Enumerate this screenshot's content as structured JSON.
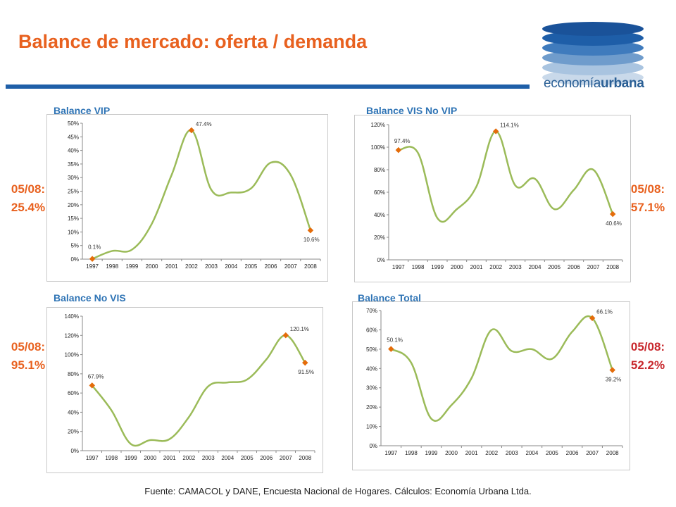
{
  "page": {
    "title": "Balance de mercado: oferta / demanda",
    "logo": {
      "text_regular": "economía",
      "text_bold": "urbana"
    },
    "footer": "Fuente: CAMACOL y DANE, Encuesta Nacional de Hogares. Cálculos: Economía Urbana Ltda.",
    "side_notes": {
      "vip": {
        "date": "05/08:",
        "value": "25.4%"
      },
      "vis": {
        "date": "05/08:",
        "value": "57.1%"
      },
      "novis": {
        "date": "05/08:",
        "value": "95.1%"
      },
      "total": {
        "date": "05/08:",
        "value": "52.2%"
      }
    }
  },
  "colors": {
    "title": "#e8611f",
    "line": "#9bbb59",
    "marker": "#e46c0a",
    "rule": "#1f5fa8",
    "chart_title": "#2f74b5",
    "side_red": "#c8282d"
  },
  "chart_data": [
    {
      "id": "vip",
      "type": "line",
      "title": "Balance VIP",
      "x": [
        "1997",
        "1998",
        "1999",
        "2000",
        "2001",
        "2002",
        "2003",
        "2004",
        "2005",
        "2006",
        "2007",
        "2008"
      ],
      "values": [
        0.1,
        3.0,
        3.5,
        13.0,
        31.0,
        47.4,
        25.5,
        24.5,
        26.0,
        35.5,
        31.0,
        10.6
      ],
      "labeled": [
        {
          "index": 0,
          "text": "0.1%"
        },
        {
          "index": 5,
          "text": "47.4%"
        },
        {
          "index": 11,
          "text": "10.6%"
        }
      ],
      "y_ticks": [
        "0%",
        "5%",
        "10%",
        "15%",
        "20%",
        "25%",
        "30%",
        "35%",
        "40%",
        "45%",
        "50%"
      ],
      "ylim": [
        0,
        50
      ]
    },
    {
      "id": "vis",
      "type": "line",
      "title": "Balance VIS No VIP",
      "x": [
        "1997",
        "1998",
        "1999",
        "2000",
        "2001",
        "2002",
        "2003",
        "2004",
        "2005",
        "2006",
        "2007",
        "2008"
      ],
      "values": [
        97.4,
        95.0,
        37.0,
        45.0,
        65.0,
        114.1,
        66.0,
        72.0,
        45.0,
        62.0,
        80.0,
        40.6
      ],
      "labeled": [
        {
          "index": 0,
          "text": "97.4%"
        },
        {
          "index": 5,
          "text": "114.1%"
        },
        {
          "index": 11,
          "text": "40.6%"
        }
      ],
      "y_ticks": [
        "0%",
        "20%",
        "40%",
        "60%",
        "80%",
        "100%",
        "120%"
      ],
      "ylim": [
        0,
        120
      ]
    },
    {
      "id": "novis",
      "type": "line",
      "title": "Balance No VIS",
      "x": [
        "1997",
        "1998",
        "1999",
        "2000",
        "2001",
        "2002",
        "2003",
        "2004",
        "2005",
        "2006",
        "2007",
        "2008"
      ],
      "values": [
        67.9,
        42.0,
        7.0,
        11.0,
        12.0,
        35.0,
        67.0,
        71.0,
        74.0,
        95.0,
        120.1,
        91.5
      ],
      "labeled": [
        {
          "index": 0,
          "text": "67.9%"
        },
        {
          "index": 10,
          "text": "120.1%"
        },
        {
          "index": 11,
          "text": "91.5%"
        }
      ],
      "y_ticks": [
        "0%",
        "20%",
        "40%",
        "60%",
        "80%",
        "100%",
        "120%",
        "140%"
      ],
      "ylim": [
        0,
        140
      ]
    },
    {
      "id": "total",
      "type": "line",
      "title": "Balance Total",
      "x": [
        "1997",
        "1998",
        "1999",
        "2000",
        "2001",
        "2002",
        "2003",
        "2004",
        "2005",
        "2006",
        "2007",
        "2008"
      ],
      "values": [
        50.1,
        43.0,
        14.0,
        21.0,
        35.0,
        60.0,
        49.0,
        50.0,
        45.0,
        59.0,
        66.1,
        39.2
      ],
      "labeled": [
        {
          "index": 0,
          "text": "50.1%"
        },
        {
          "index": 10,
          "text": "66.1%"
        },
        {
          "index": 11,
          "text": "39.2%"
        }
      ],
      "y_ticks": [
        "0%",
        "10%",
        "20%",
        "30%",
        "40%",
        "50%",
        "60%",
        "70%"
      ],
      "ylim": [
        0,
        70
      ]
    }
  ]
}
